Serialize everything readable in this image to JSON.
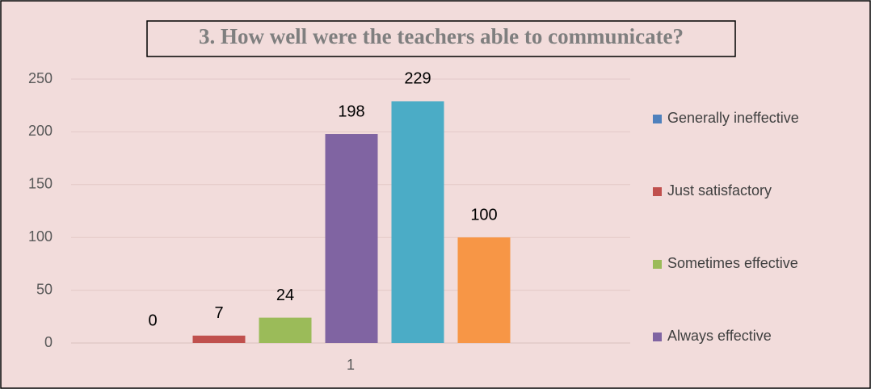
{
  "chart_data": {
    "type": "bar",
    "title": "3. How well were the teachers able to communicate?",
    "categories": [
      "1"
    ],
    "series": [
      {
        "name": "Generally ineffective",
        "color": "#4f81bd",
        "values": [
          0
        ]
      },
      {
        "name": "Just satisfactory",
        "color": "#c0504d",
        "values": [
          7
        ]
      },
      {
        "name": "Sometimes effective",
        "color": "#9bbb59",
        "values": [
          24
        ]
      },
      {
        "name": "Always effective",
        "color": "#8064a2",
        "values": [
          198
        ]
      },
      {
        "color": "#4bacc6",
        "values": [
          229
        ]
      },
      {
        "color": "#f79646",
        "values": [
          100
        ]
      }
    ],
    "ylim": [
      0,
      250
    ],
    "yticks": [
      0,
      50,
      100,
      150,
      200,
      250
    ],
    "grid": true,
    "legend": "right"
  }
}
